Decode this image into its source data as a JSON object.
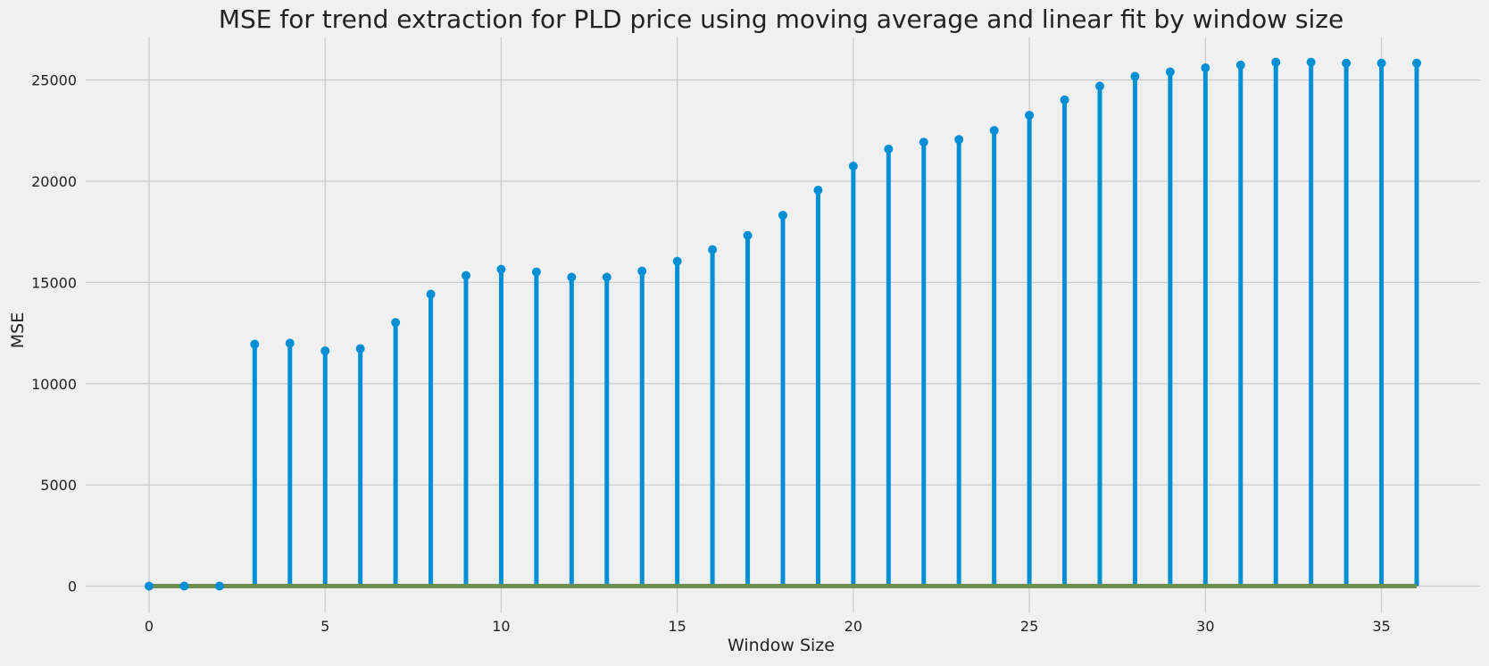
{
  "chart_data": {
    "type": "stem",
    "title": "MSE for trend extraction for PLD price using moving average and linear fit by window size",
    "xlabel": "Window Size",
    "ylabel": "MSE",
    "xlim": [
      -1.8,
      37.8
    ],
    "ylim": [
      -1300,
      27100
    ],
    "xticks": [
      0,
      5,
      10,
      15,
      20,
      25,
      30,
      35
    ],
    "yticks": [
      0,
      5000,
      10000,
      15000,
      20000,
      25000
    ],
    "grid": true,
    "x": [
      0,
      1,
      2,
      3,
      4,
      5,
      6,
      7,
      8,
      9,
      10,
      11,
      12,
      13,
      14,
      15,
      16,
      17,
      18,
      19,
      20,
      21,
      22,
      23,
      24,
      25,
      26,
      27,
      28,
      29,
      30,
      31,
      32,
      33,
      34,
      35,
      36
    ],
    "values": [
      0,
      0,
      0,
      11950,
      12000,
      11620,
      11730,
      13020,
      14420,
      15340,
      15650,
      15520,
      15260,
      15260,
      15560,
      16050,
      16620,
      17320,
      18320,
      19560,
      20750,
      21590,
      21930,
      22060,
      22510,
      23260,
      24020,
      24700,
      25180,
      25400,
      25600,
      25740,
      25880,
      25880,
      25830,
      25830,
      25830
    ],
    "colors": {
      "stem": "#008fd5",
      "baseline": "#6d904f",
      "grid": "#cbcbcb",
      "background": "#f0f0f0"
    }
  }
}
